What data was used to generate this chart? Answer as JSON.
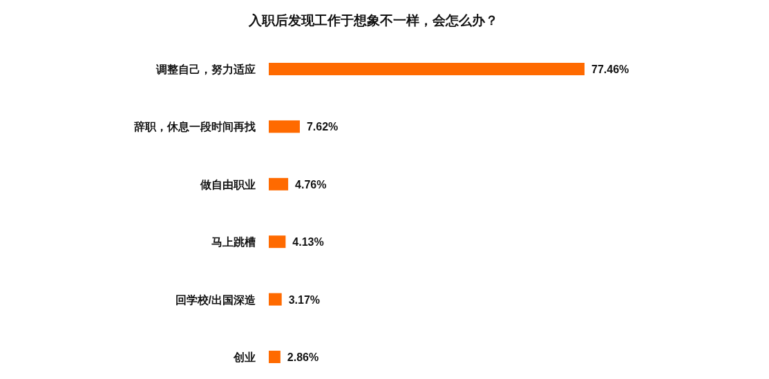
{
  "chart_data": {
    "type": "bar",
    "orientation": "horizontal",
    "title": "入职后发现工作于想象不一样，会怎么办？",
    "categories": [
      "调整自己，努力适应",
      "辞职，休息一段时间再找",
      "做自由职业",
      "马上跳槽",
      "回学校/出国深造",
      "创业"
    ],
    "values": [
      77.46,
      7.62,
      4.76,
      4.13,
      3.17,
      2.86
    ],
    "value_labels": [
      "77.46%",
      "7.62%",
      "4.76%",
      "4.13%",
      "3.17%",
      "2.86%"
    ],
    "color": "#ff6a00"
  }
}
